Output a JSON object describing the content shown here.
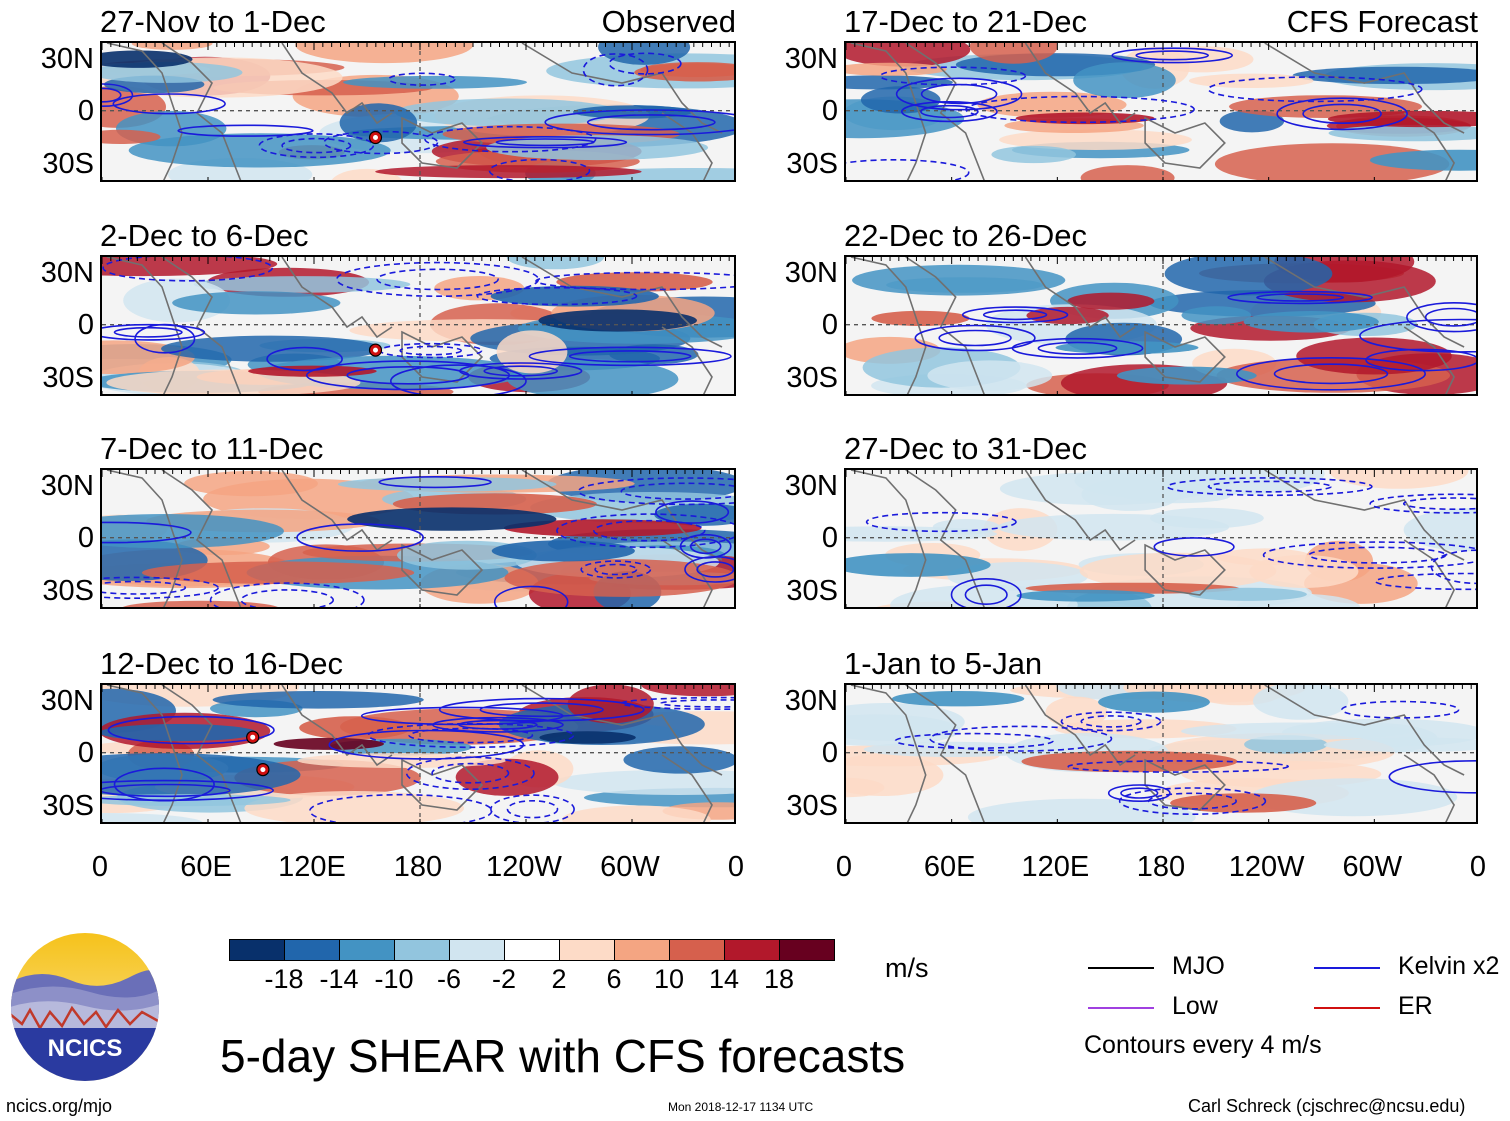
{
  "chart_data": {
    "type": "heatmap",
    "title": "5-day SHEAR with CFS forecasts",
    "units": "m/s",
    "y_ticks": [
      "30N",
      "0",
      "30S"
    ],
    "x_ticks": [
      "0",
      "60E",
      "120E",
      "180",
      "120W",
      "60W",
      "0"
    ],
    "panels": [
      {
        "period": "27-Nov to 1-Dec",
        "label": "Observed"
      },
      {
        "period": "2-Dec to 6-Dec",
        "label": ""
      },
      {
        "period": "7-Dec to 11-Dec",
        "label": ""
      },
      {
        "period": "12-Dec to 16-Dec",
        "label": ""
      },
      {
        "period": "17-Dec to 21-Dec",
        "label": "CFS Forecast"
      },
      {
        "period": "22-Dec to 26-Dec",
        "label": ""
      },
      {
        "period": "27-Dec to 31-Dec",
        "label": ""
      },
      {
        "period": "1-Jan to 5-Jan",
        "label": ""
      }
    ],
    "colorbar": {
      "labels": [
        "-18",
        "-14",
        "-10",
        "-6",
        "-2",
        "2",
        "6",
        "10",
        "14",
        "18"
      ],
      "colors": [
        "#08306b",
        "#2166ac",
        "#4393c3",
        "#92c5de",
        "#d1e5f0",
        "#ffffff",
        "#fddbc7",
        "#f4a582",
        "#d6604d",
        "#b2182b",
        "#67001f"
      ]
    },
    "legend": [
      {
        "name": "MJO",
        "color": "#000000"
      },
      {
        "name": "Kelvin x2",
        "color": "#1a1adb"
      },
      {
        "name": "Low",
        "color": "#a040e0"
      },
      {
        "name": "ER",
        "color": "#d01010"
      }
    ],
    "contour_note": "Contours every 4 m/s"
  },
  "footer": {
    "logo_text": "NCICS",
    "site": "ncics.org/mjo",
    "timestamp": "Mon 2018-12-17 1134 UTC",
    "credit": "Carl Schreck (cjschrec@ncsu.edu)"
  }
}
